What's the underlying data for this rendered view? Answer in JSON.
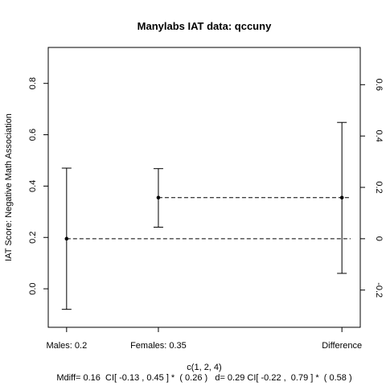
{
  "chart_data": {
    "type": "errorbar",
    "title": "Manylabs IAT data:  qccuny",
    "ylabel": "IAT Score: Negative Math Association",
    "xlabel": "c(1, 2, 4)",
    "subtitle": "Mdiff= 0.16  CI[ -0.13 , 0.45 ] *  ( 0.26 )   d= 0.29 CI[ -0.22 ,  0.79 ] *  ( 0.58 )",
    "xlim": [
      0.8,
      4.2
    ],
    "ylim": [
      -0.15,
      0.94
    ],
    "categories": [
      {
        "label": "Males:  0.2",
        "x": 1
      },
      {
        "label": "Females:  0.35",
        "x": 2
      },
      {
        "label": "Difference",
        "x": 4
      }
    ],
    "points": [
      {
        "x": 1,
        "y": 0.195,
        "lower": -0.08,
        "upper": 0.47
      },
      {
        "x": 2,
        "y": 0.355,
        "lower": 0.24,
        "upper": 0.468
      },
      {
        "x": 4,
        "y": 0.355,
        "lower": 0.06,
        "upper": 0.648
      }
    ],
    "reference_lines": [
      {
        "y": 0.195,
        "from_x": 1
      },
      {
        "y": 0.355,
        "from_x": 2
      }
    ],
    "left_axis_ticks": [
      0.0,
      0.2,
      0.4,
      0.6,
      0.8
    ],
    "left_axis_tick_labels": [
      "0.0",
      "0.2",
      "0.4",
      "0.6",
      "0.8"
    ],
    "right_axis": {
      "offset": 0.195,
      "ticks": [
        -0.2,
        0,
        0.2,
        0.4,
        0.6
      ],
      "tick_labels": [
        "-0.2",
        "0",
        "0.2",
        "0.4",
        "0.6"
      ]
    }
  }
}
